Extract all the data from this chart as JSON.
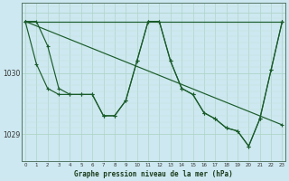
{
  "bg_color": "#cde8f0",
  "grid_color_major": "#b0d4c8",
  "grid_color_minor": "#c8e2da",
  "line_color": "#1a5c2a",
  "xlabel": "Graphe pression niveau de la mer (hPa)",
  "ylabel_ticks": [
    1029,
    1030
  ],
  "xlim": [
    -0.3,
    23.3
  ],
  "ylim": [
    1028.55,
    1031.15
  ],
  "series": [
    {
      "x": [
        0,
        23
      ],
      "y": [
        1030.85,
        1029.15
      ]
    },
    {
      "x": [
        0,
        23
      ],
      "y": [
        1030.85,
        1030.85
      ]
    },
    {
      "x": [
        0,
        1,
        2,
        3,
        4,
        5,
        6,
        7,
        8,
        9,
        10,
        11,
        12,
        13,
        14,
        15,
        16,
        17,
        18,
        19,
        20,
        21,
        22,
        23
      ],
      "y": [
        1030.85,
        1030.85,
        1030.45,
        1029.75,
        1029.65,
        1029.65,
        1029.65,
        1029.3,
        1029.3,
        1029.55,
        1030.2,
        1030.85,
        1030.85,
        1030.2,
        1029.75,
        1029.65,
        1029.35,
        1029.25,
        1029.1,
        1029.05,
        1028.8,
        1029.25,
        1030.05,
        1030.85
      ]
    },
    {
      "x": [
        0,
        1,
        2,
        3,
        4,
        5,
        6,
        7,
        8,
        9,
        10,
        11,
        12,
        13,
        14,
        15,
        16,
        17,
        18,
        19,
        20,
        21,
        22,
        23
      ],
      "y": [
        1030.85,
        1030.15,
        1029.75,
        1029.65,
        1029.65,
        1029.65,
        1029.65,
        1029.3,
        1029.3,
        1029.55,
        1030.2,
        1030.85,
        1030.85,
        1030.2,
        1029.75,
        1029.65,
        1029.35,
        1029.25,
        1029.1,
        1029.05,
        1028.8,
        1029.25,
        1030.05,
        1030.85
      ]
    }
  ]
}
